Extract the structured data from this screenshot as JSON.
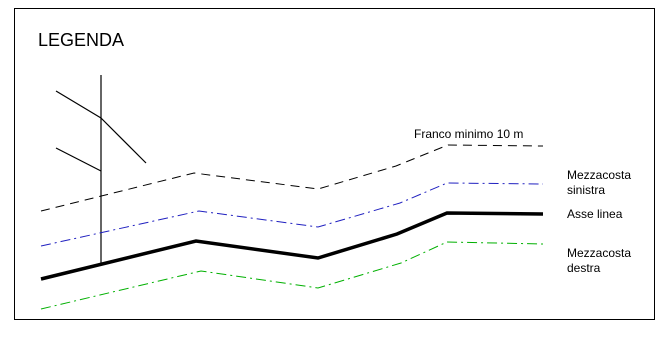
{
  "legend": {
    "title": "LEGENDA",
    "franco": "Franco minimo 10 m",
    "mezzacosta_sinistra": [
      "Mezzacosta",
      "sinistra"
    ],
    "asse_linea": "Asse linea",
    "mezzacosta_destra": [
      "Mezzacosta",
      "destra"
    ]
  },
  "colors": {
    "frame": "#000000",
    "franco_line": "#000000",
    "mezzacosta_sinistra_line": "#2020c0",
    "asse_line": "#000000",
    "mezzacosta_destra_line": "#00b000",
    "pylon": "#000000"
  }
}
